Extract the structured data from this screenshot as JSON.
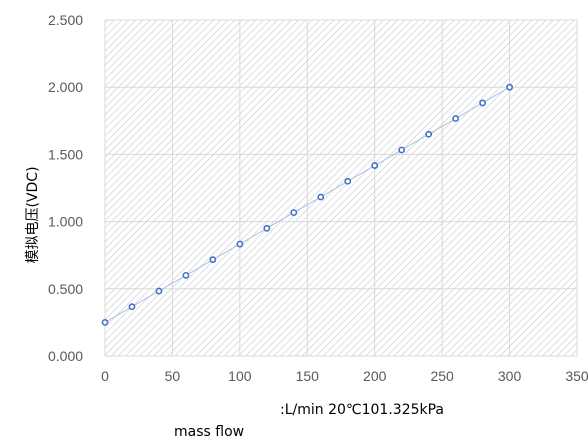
{
  "chart_data": {
    "type": "scatter",
    "xlabel": "mass flow",
    "ylabel": "模拟电压(VDC)",
    "unit_note": ":L/min  20℃101.325kPa",
    "xlim": [
      0,
      350
    ],
    "ylim": [
      0,
      2.5
    ],
    "x_ticks": [
      "0",
      "50",
      "100",
      "150",
      "200",
      "250",
      "300",
      "350"
    ],
    "y_ticks": [
      "0.000",
      "0.500",
      "1.000",
      "1.500",
      "2.000",
      "2.500"
    ],
    "x_tick_values": [
      0,
      50,
      100,
      150,
      200,
      250,
      300,
      350
    ],
    "y_tick_values": [
      0,
      0.5,
      1.0,
      1.5,
      2.0,
      2.5
    ],
    "grid": true,
    "legend": "none",
    "series": [
      {
        "x": [
          0,
          20,
          40,
          60,
          80,
          100,
          120,
          140,
          160,
          180,
          200,
          220,
          240,
          260,
          280,
          300
        ],
        "y": [
          0.25,
          0.367,
          0.483,
          0.6,
          0.717,
          0.833,
          0.95,
          1.067,
          1.183,
          1.3,
          1.417,
          1.533,
          1.65,
          1.767,
          1.883,
          2.0
        ]
      }
    ],
    "colors": {
      "marker": "#4472C4",
      "line": "#A9C1E6",
      "grid": "#D9D9D9",
      "hatch": "#C8C8C8"
    }
  }
}
